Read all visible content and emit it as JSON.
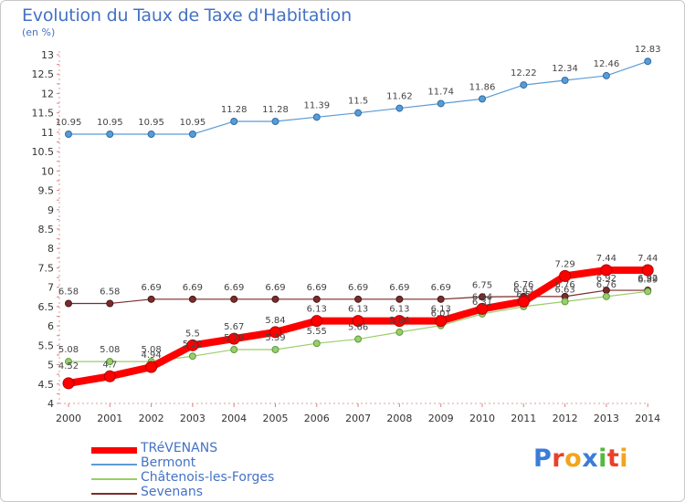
{
  "header": {
    "title": "Evolution du Taux de Taxe d'Habitation",
    "subtitle": "(en %)"
  },
  "logo": {
    "text": "Proxiti",
    "letter_colors": [
      "#3b7dd8",
      "#e8412a",
      "#f2a51c",
      "#3b7dd8",
      "#56b83c",
      "#e8412a",
      "#f2a51c"
    ]
  },
  "chart_data": {
    "type": "line",
    "title": "Evolution du Taux de Taxe d'Habitation",
    "subtitle": "(en %)",
    "xlabel": "",
    "ylabel": "",
    "x": [
      "2000",
      "2001",
      "2002",
      "2003",
      "2004",
      "2005",
      "2006",
      "2007",
      "2008",
      "2009",
      "2010",
      "2011",
      "2012",
      "2013",
      "2014"
    ],
    "ylim": [
      4,
      13
    ],
    "yticks": [
      "4",
      "4.5",
      "5",
      "5.5",
      "6",
      "6.5",
      "7",
      "7.5",
      "8",
      "8.5",
      "9",
      "9.5",
      "10",
      "10.5",
      "11",
      "11.5",
      "12",
      "12.5",
      "13"
    ],
    "grid": false,
    "legend_position": "bottom-left",
    "series": [
      {
        "name": "Sevenans",
        "color": "#7b2b2b",
        "values": [
          6.58,
          6.58,
          6.69,
          6.69,
          6.69,
          6.69,
          6.69,
          6.69,
          6.69,
          6.69,
          6.75,
          6.76,
          6.76,
          6.92,
          6.92
        ],
        "labels": [
          "6.58",
          "6.58",
          "6.69",
          "6.69",
          "6.69",
          "6.69",
          "6.69",
          "6.69",
          "6.69",
          "6.69",
          "6.75",
          "6.76",
          "6.76",
          "6.92",
          "6.92"
        ]
      },
      {
        "name": "Châtenois-les-Forges",
        "color": "#9acd6b",
        "values": [
          5.08,
          5.08,
          5.08,
          5.22,
          5.39,
          5.39,
          5.55,
          5.66,
          5.84,
          6.01,
          6.31,
          6.5,
          6.63,
          6.76,
          6.89
        ],
        "labels": [
          "5.08",
          "5.08",
          "5.08",
          "5.22",
          "5.39",
          "5.39",
          "5.55",
          "5.66",
          "5.84",
          "6.01",
          "6.31",
          "6.5",
          "6.63",
          "6.76",
          "6.89"
        ]
      },
      {
        "name": "Bermont",
        "color": "#5b9bd5",
        "values": [
          10.95,
          10.95,
          10.95,
          10.95,
          11.28,
          11.28,
          11.39,
          11.5,
          11.62,
          11.74,
          11.86,
          12.22,
          12.34,
          12.46,
          12.83
        ],
        "labels": [
          "10.95",
          "10.95",
          "10.95",
          "10.95",
          "11.28",
          "11.28",
          "11.39",
          "11.5",
          "11.62",
          "11.74",
          "11.86",
          "12.22",
          "12.34",
          "12.46",
          "12.83"
        ]
      },
      {
        "name": "TRéVENANS",
        "color": "#ff0000",
        "values": [
          4.52,
          4.7,
          4.94,
          5.5,
          5.67,
          5.84,
          6.13,
          6.13,
          6.13,
          6.13,
          6.44,
          6.63,
          7.29,
          7.44,
          7.44
        ],
        "labels": [
          "4.52",
          "4.7",
          "4.94",
          "5.5",
          "5.67",
          "5.84",
          "6.13",
          "6.13",
          "6.13",
          "6.13",
          "6.44",
          "6.63",
          "7.29",
          "7.44",
          "7.44"
        ]
      }
    ],
    "legend_order": [
      "TRéVENANS",
      "Bermont",
      "Châtenois-les-Forges",
      "Sevenans"
    ]
  }
}
